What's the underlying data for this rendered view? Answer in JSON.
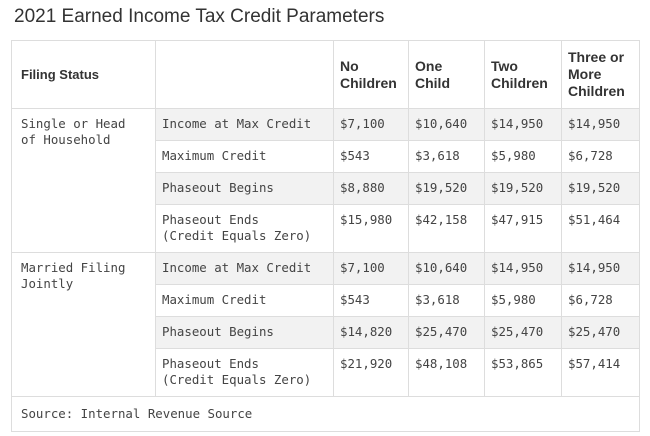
{
  "title": "2021 Earned Income Tax Credit Parameters",
  "headers": {
    "filing_status": "Filing Status",
    "blank": "",
    "no_children": "No\nChildren",
    "one_child": "One\nChild",
    "two_children": "Two\nChildren",
    "three_or_more": "Three or\nMore\nChildren"
  },
  "groups": [
    {
      "status": "Single or Head\nof Household",
      "rows": [
        {
          "param": "Income at Max Credit",
          "values": [
            "$7,100",
            "$10,640",
            "$14,950",
            "$14,950"
          ]
        },
        {
          "param": "Maximum Credit",
          "values": [
            "$543",
            "$3,618",
            "$5,980",
            "$6,728"
          ]
        },
        {
          "param": "Phaseout Begins",
          "values": [
            "$8,880",
            "$19,520",
            "$19,520",
            "$19,520"
          ]
        },
        {
          "param": "Phaseout Ends\n(Credit Equals Zero)",
          "values": [
            "$15,980",
            "$42,158",
            "$47,915",
            "$51,464"
          ]
        }
      ]
    },
    {
      "status": "Married Filing\nJointly",
      "rows": [
        {
          "param": "Income at Max Credit",
          "values": [
            "$7,100",
            "$10,640",
            "$14,950",
            "$14,950"
          ]
        },
        {
          "param": "Maximum Credit",
          "values": [
            "$543",
            "$3,618",
            "$5,980",
            "$6,728"
          ]
        },
        {
          "param": "Phaseout Begins",
          "values": [
            "$14,820",
            "$25,470",
            "$25,470",
            "$25,470"
          ]
        },
        {
          "param": "Phaseout Ends\n(Credit Equals Zero)",
          "values": [
            "$21,920",
            "$48,108",
            "$53,865",
            "$57,414"
          ]
        }
      ]
    }
  ],
  "source": "Source: Internal Revenue Source"
}
